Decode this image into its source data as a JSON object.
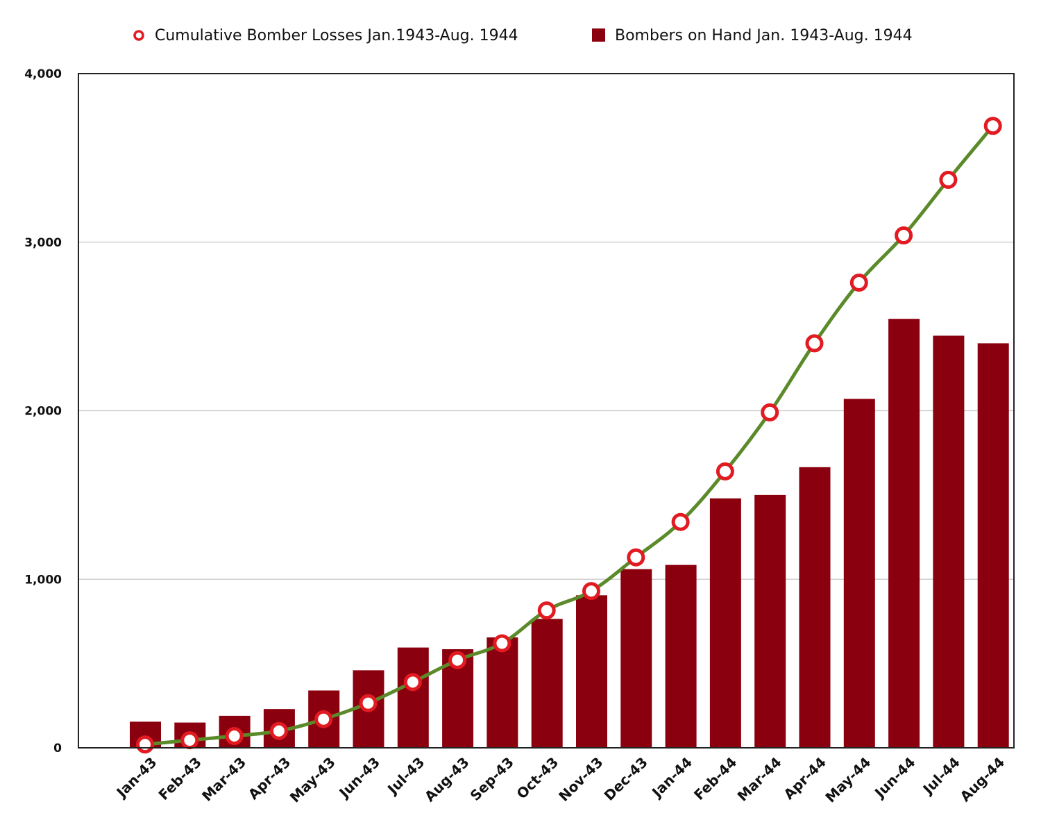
{
  "chart_data": {
    "type": "bar",
    "title": "",
    "xlabel": "",
    "ylabel": "",
    "ylim": [
      0,
      4000
    ],
    "yticks": [
      0,
      1000,
      2000,
      3000,
      4000
    ],
    "ytick_labels": [
      "0",
      "1,000",
      "2,000",
      "3,000",
      "4,000"
    ],
    "grid": true,
    "legend_position": "top",
    "categories": [
      "Jan-43",
      "Feb-43",
      "Mar-43",
      "Apr-43",
      "May-43",
      "Jun-43",
      "Jul-43",
      "Aug-43",
      "Sep-43",
      "Oct-43",
      "Nov-43",
      "Dec-43",
      "Jan-44",
      "Feb-44",
      "Mar-44",
      "Apr-44",
      "May-44",
      "Jun-44",
      "Jul-44",
      "Aug-44"
    ],
    "series": [
      {
        "name": "Bombers on Hand Jan. 1943-Aug. 1944",
        "kind": "bar",
        "color": "#8b000e",
        "values": [
          155,
          150,
          190,
          230,
          340,
          460,
          595,
          585,
          655,
          765,
          905,
          1060,
          1085,
          1480,
          1500,
          1665,
          2070,
          2545,
          2445,
          2400
        ]
      },
      {
        "name": "Cumulative Bomber Losses Jan.1943-Aug. 1944",
        "kind": "line",
        "color": "#5a8a2a",
        "marker_color": "#e21a22",
        "values": [
          20,
          45,
          70,
          100,
          170,
          265,
          390,
          520,
          620,
          815,
          930,
          1130,
          1340,
          1640,
          1990,
          2400,
          2760,
          3040,
          3370,
          3690
        ]
      }
    ]
  }
}
